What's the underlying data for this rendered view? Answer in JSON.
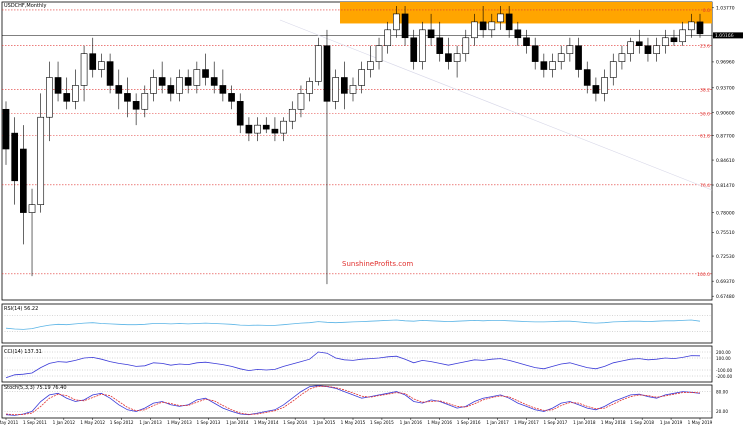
{
  "chart_data": [
    {
      "type": "candlestick",
      "title": "USDCHF,Monthly",
      "current_price_label": "1.00166",
      "watermark": "SunshineProfits.com",
      "x_tick_labels": [
        "1 May 2011",
        "1 Sep 2011",
        "1 Jan 2012",
        "1 May 2012",
        "1 Sep 2012",
        "1 Jan 2013",
        "1 May 2013",
        "1 Sep 2013",
        "1 Jan 2014",
        "1 May 2014",
        "1 Sep 2014",
        "1 Jan 2015",
        "1 May 2015",
        "1 Sep 2015",
        "1 Jan 2016",
        "1 May 2016",
        "1 Sep 2016",
        "1 Jan 2017",
        "1 May 2017",
        "1 Sep 2017",
        "1 Jan 2018",
        "1 May 2018",
        "1 Sep 2018",
        "1 Jan 2019",
        "1 May 2019"
      ],
      "y_tick_labels": [
        "1.03770",
        "1.00230",
        "0.96960",
        "0.93700",
        "0.90600",
        "0.87700",
        "0.84610",
        "0.81470",
        "0.78000",
        "0.75510",
        "0.72530",
        "0.69370",
        "0.67480"
      ],
      "fib_labels": [
        "0.0",
        "23.6",
        "38.2",
        "50.0",
        "61.8",
        "76.4",
        "100.0"
      ],
      "ylim": [
        0.67,
        1.045
      ],
      "resistance_zone": [
        1.018,
        1.045
      ],
      "candles": [
        {
          "o": 0.91,
          "h": 0.92,
          "l": 0.84,
          "c": 0.86
        },
        {
          "o": 0.88,
          "h": 0.9,
          "l": 0.79,
          "c": 0.82
        },
        {
          "o": 0.86,
          "h": 0.89,
          "l": 0.74,
          "c": 0.78
        },
        {
          "o": 0.78,
          "h": 0.81,
          "l": 0.7,
          "c": 0.79
        },
        {
          "o": 0.79,
          "h": 0.93,
          "l": 0.78,
          "c": 0.9
        },
        {
          "o": 0.9,
          "h": 0.97,
          "l": 0.87,
          "c": 0.95
        },
        {
          "o": 0.95,
          "h": 0.97,
          "l": 0.92,
          "c": 0.93
        },
        {
          "o": 0.93,
          "h": 0.95,
          "l": 0.91,
          "c": 0.92
        },
        {
          "o": 0.92,
          "h": 0.96,
          "l": 0.91,
          "c": 0.94
        },
        {
          "o": 0.94,
          "h": 0.99,
          "l": 0.92,
          "c": 0.98
        },
        {
          "o": 0.98,
          "h": 1.0,
          "l": 0.95,
          "c": 0.96
        },
        {
          "o": 0.96,
          "h": 0.98,
          "l": 0.95,
          "c": 0.97
        },
        {
          "o": 0.97,
          "h": 0.98,
          "l": 0.93,
          "c": 0.94
        },
        {
          "o": 0.94,
          "h": 0.96,
          "l": 0.91,
          "c": 0.93
        },
        {
          "o": 0.93,
          "h": 0.95,
          "l": 0.9,
          "c": 0.92
        },
        {
          "o": 0.92,
          "h": 0.93,
          "l": 0.89,
          "c": 0.91
        },
        {
          "o": 0.91,
          "h": 0.94,
          "l": 0.9,
          "c": 0.93
        },
        {
          "o": 0.93,
          "h": 0.96,
          "l": 0.92,
          "c": 0.95
        },
        {
          "o": 0.95,
          "h": 0.97,
          "l": 0.93,
          "c": 0.94
        },
        {
          "o": 0.94,
          "h": 0.95,
          "l": 0.92,
          "c": 0.93
        },
        {
          "o": 0.93,
          "h": 0.96,
          "l": 0.92,
          "c": 0.95
        },
        {
          "o": 0.95,
          "h": 0.96,
          "l": 0.93,
          "c": 0.94
        },
        {
          "o": 0.94,
          "h": 0.97,
          "l": 0.93,
          "c": 0.96
        },
        {
          "o": 0.96,
          "h": 0.98,
          "l": 0.94,
          "c": 0.95
        },
        {
          "o": 0.95,
          "h": 0.97,
          "l": 0.93,
          "c": 0.94
        },
        {
          "o": 0.94,
          "h": 0.96,
          "l": 0.92,
          "c": 0.93
        },
        {
          "o": 0.93,
          "h": 0.94,
          "l": 0.91,
          "c": 0.92
        },
        {
          "o": 0.92,
          "h": 0.93,
          "l": 0.88,
          "c": 0.89
        },
        {
          "o": 0.89,
          "h": 0.9,
          "l": 0.87,
          "c": 0.88
        },
        {
          "o": 0.88,
          "h": 0.9,
          "l": 0.87,
          "c": 0.89
        },
        {
          "o": 0.89,
          "h": 0.9,
          "l": 0.88,
          "c": 0.885
        },
        {
          "o": 0.885,
          "h": 0.9,
          "l": 0.87,
          "c": 0.88
        },
        {
          "o": 0.88,
          "h": 0.9,
          "l": 0.87,
          "c": 0.895
        },
        {
          "o": 0.895,
          "h": 0.92,
          "l": 0.885,
          "c": 0.91
        },
        {
          "o": 0.91,
          "h": 0.94,
          "l": 0.9,
          "c": 0.93
        },
        {
          "o": 0.93,
          "h": 0.95,
          "l": 0.92,
          "c": 0.945
        },
        {
          "o": 0.945,
          "h": 1.0,
          "l": 0.94,
          "c": 0.99
        },
        {
          "o": 0.99,
          "h": 1.01,
          "l": 0.69,
          "c": 0.92
        },
        {
          "o": 0.92,
          "h": 0.96,
          "l": 0.91,
          "c": 0.95
        },
        {
          "o": 0.95,
          "h": 0.97,
          "l": 0.91,
          "c": 0.93
        },
        {
          "o": 0.93,
          "h": 0.95,
          "l": 0.92,
          "c": 0.94
        },
        {
          "o": 0.94,
          "h": 0.97,
          "l": 0.93,
          "c": 0.96
        },
        {
          "o": 0.96,
          "h": 0.99,
          "l": 0.95,
          "c": 0.97
        },
        {
          "o": 0.97,
          "h": 1.0,
          "l": 0.96,
          "c": 0.99
        },
        {
          "o": 0.99,
          "h": 1.02,
          "l": 0.98,
          "c": 1.01
        },
        {
          "o": 1.01,
          "h": 1.04,
          "l": 1.0,
          "c": 1.03
        },
        {
          "o": 1.03,
          "h": 1.04,
          "l": 0.99,
          "c": 1.0
        },
        {
          "o": 1.0,
          "h": 1.01,
          "l": 0.96,
          "c": 0.97
        },
        {
          "o": 0.97,
          "h": 1.02,
          "l": 0.96,
          "c": 1.01
        },
        {
          "o": 1.01,
          "h": 1.03,
          "l": 0.99,
          "c": 1.0
        },
        {
          "o": 1.0,
          "h": 1.02,
          "l": 0.97,
          "c": 0.98
        },
        {
          "o": 0.98,
          "h": 1.0,
          "l": 0.96,
          "c": 0.97
        },
        {
          "o": 0.97,
          "h": 0.99,
          "l": 0.95,
          "c": 0.98
        },
        {
          "o": 0.98,
          "h": 1.01,
          "l": 0.97,
          "c": 1.0
        },
        {
          "o": 1.0,
          "h": 1.03,
          "l": 0.99,
          "c": 1.02
        },
        {
          "o": 1.02,
          "h": 1.04,
          "l": 1.0,
          "c": 1.01
        },
        {
          "o": 1.01,
          "h": 1.03,
          "l": 1.0,
          "c": 1.02
        },
        {
          "o": 1.02,
          "h": 1.04,
          "l": 1.01,
          "c": 1.03
        },
        {
          "o": 1.03,
          "h": 1.04,
          "l": 1.0,
          "c": 1.01
        },
        {
          "o": 1.01,
          "h": 1.02,
          "l": 0.99,
          "c": 1.0
        },
        {
          "o": 1.0,
          "h": 1.01,
          "l": 0.98,
          "c": 0.99
        },
        {
          "o": 0.99,
          "h": 1.0,
          "l": 0.96,
          "c": 0.97
        },
        {
          "o": 0.97,
          "h": 0.98,
          "l": 0.95,
          "c": 0.96
        },
        {
          "o": 0.96,
          "h": 0.98,
          "l": 0.95,
          "c": 0.97
        },
        {
          "o": 0.97,
          "h": 0.99,
          "l": 0.96,
          "c": 0.98
        },
        {
          "o": 0.98,
          "h": 1.0,
          "l": 0.97,
          "c": 0.99
        },
        {
          "o": 0.99,
          "h": 1.0,
          "l": 0.95,
          "c": 0.96
        },
        {
          "o": 0.96,
          "h": 0.97,
          "l": 0.93,
          "c": 0.94
        },
        {
          "o": 0.94,
          "h": 0.95,
          "l": 0.92,
          "c": 0.93
        },
        {
          "o": 0.93,
          "h": 0.96,
          "l": 0.92,
          "c": 0.95
        },
        {
          "o": 0.95,
          "h": 0.98,
          "l": 0.94,
          "c": 0.97
        },
        {
          "o": 0.97,
          "h": 0.99,
          "l": 0.96,
          "c": 0.98
        },
        {
          "o": 0.98,
          "h": 1.0,
          "l": 0.97,
          "c": 0.995
        },
        {
          "o": 0.995,
          "h": 1.01,
          "l": 0.98,
          "c": 0.99
        },
        {
          "o": 0.99,
          "h": 1.0,
          "l": 0.97,
          "c": 0.98
        },
        {
          "o": 0.98,
          "h": 1.0,
          "l": 0.97,
          "c": 0.99
        },
        {
          "o": 0.99,
          "h": 1.01,
          "l": 0.98,
          "c": 1.0
        },
        {
          "o": 1.0,
          "h": 1.01,
          "l": 0.99,
          "c": 0.995
        },
        {
          "o": 0.995,
          "h": 1.02,
          "l": 0.99,
          "c": 1.01
        },
        {
          "o": 1.01,
          "h": 1.03,
          "l": 1.0,
          "c": 1.02
        },
        {
          "o": 1.02,
          "h": 1.03,
          "l": 1.0,
          "c": 1.005
        }
      ]
    },
    {
      "type": "line",
      "title": "RSI(14) 56.22",
      "ylim": [
        0,
        100
      ],
      "levels": [
        30,
        70
      ],
      "series": [
        {
          "values": [
            38,
            36,
            35,
            37,
            42,
            46,
            48,
            47,
            49,
            51,
            52,
            50,
            49,
            48,
            47,
            47,
            48,
            50,
            50,
            49,
            50,
            49,
            50,
            51,
            50,
            49,
            48,
            46,
            45,
            46,
            45,
            45,
            47,
            49,
            51,
            52,
            55,
            53,
            52,
            53,
            54,
            55,
            56,
            57,
            58,
            59,
            57,
            56,
            58,
            57,
            56,
            55,
            56,
            57,
            58,
            57,
            58,
            58,
            57,
            56,
            55,
            54,
            54,
            55,
            56,
            56,
            54,
            52,
            51,
            52,
            54,
            55,
            56,
            56,
            55,
            56,
            57,
            57,
            58,
            59,
            56
          ]
        }
      ]
    },
    {
      "type": "line",
      "title": "CCI(14) 137.31",
      "y_tick_labels": [
        "200.00",
        "100.00",
        "-100.00",
        "-200.00"
      ],
      "ylim": [
        -300,
        300
      ],
      "levels": [
        -200,
        -100,
        100,
        200
      ],
      "series": [
        {
          "values": [
            -230,
            -180,
            -170,
            -150,
            -60,
            10,
            40,
            30,
            60,
            100,
            110,
            80,
            40,
            10,
            -10,
            -40,
            -30,
            20,
            10,
            -20,
            0,
            -10,
            20,
            30,
            10,
            -10,
            -40,
            -80,
            -110,
            -90,
            -100,
            -90,
            -40,
            0,
            40,
            80,
            200,
            180,
            100,
            70,
            60,
            80,
            90,
            100,
            120,
            130,
            80,
            20,
            60,
            40,
            10,
            -20,
            10,
            40,
            70,
            60,
            80,
            90,
            60,
            20,
            -20,
            -60,
            -80,
            -40,
            0,
            20,
            -20,
            -60,
            -80,
            -40,
            20,
            50,
            80,
            90,
            70,
            80,
            100,
            90,
            110,
            140,
            137
          ]
        }
      ]
    },
    {
      "type": "line",
      "title": "Stoch(5,3,3) 75.19 76.40",
      "y_tick_labels": [
        "80.00",
        "20.00"
      ],
      "ylim": [
        0,
        100
      ],
      "levels": [
        20,
        80
      ],
      "series": [
        {
          "values": [
            10,
            8,
            12,
            20,
            50,
            70,
            75,
            60,
            50,
            55,
            70,
            75,
            60,
            40,
            25,
            20,
            30,
            45,
            50,
            40,
            35,
            40,
            55,
            60,
            45,
            30,
            20,
            12,
            10,
            15,
            20,
            25,
            40,
            60,
            80,
            95,
            98,
            95,
            90,
            80,
            70,
            60,
            65,
            70,
            75,
            80,
            70,
            50,
            45,
            55,
            50,
            40,
            30,
            35,
            50,
            60,
            65,
            70,
            60,
            45,
            35,
            25,
            20,
            30,
            45,
            50,
            40,
            30,
            25,
            35,
            50,
            60,
            70,
            72,
            65,
            60,
            70,
            75,
            80,
            78,
            75
          ]
        },
        {
          "values": [
            12,
            10,
            11,
            15,
            35,
            60,
            72,
            68,
            55,
            52,
            62,
            72,
            68,
            50,
            32,
            22,
            25,
            38,
            48,
            44,
            38,
            38,
            48,
            57,
            52,
            38,
            25,
            15,
            11,
            12,
            17,
            22,
            32,
            50,
            70,
            88,
            96,
            96,
            92,
            85,
            76,
            66,
            63,
            68,
            72,
            77,
            74,
            58,
            48,
            50,
            52,
            44,
            35,
            33,
            43,
            55,
            62,
            67,
            64,
            52,
            40,
            30,
            23,
            25,
            38,
            47,
            45,
            35,
            28,
            30,
            42,
            55,
            65,
            70,
            68,
            63,
            67,
            72,
            77,
            78,
            76
          ]
        }
      ]
    }
  ]
}
